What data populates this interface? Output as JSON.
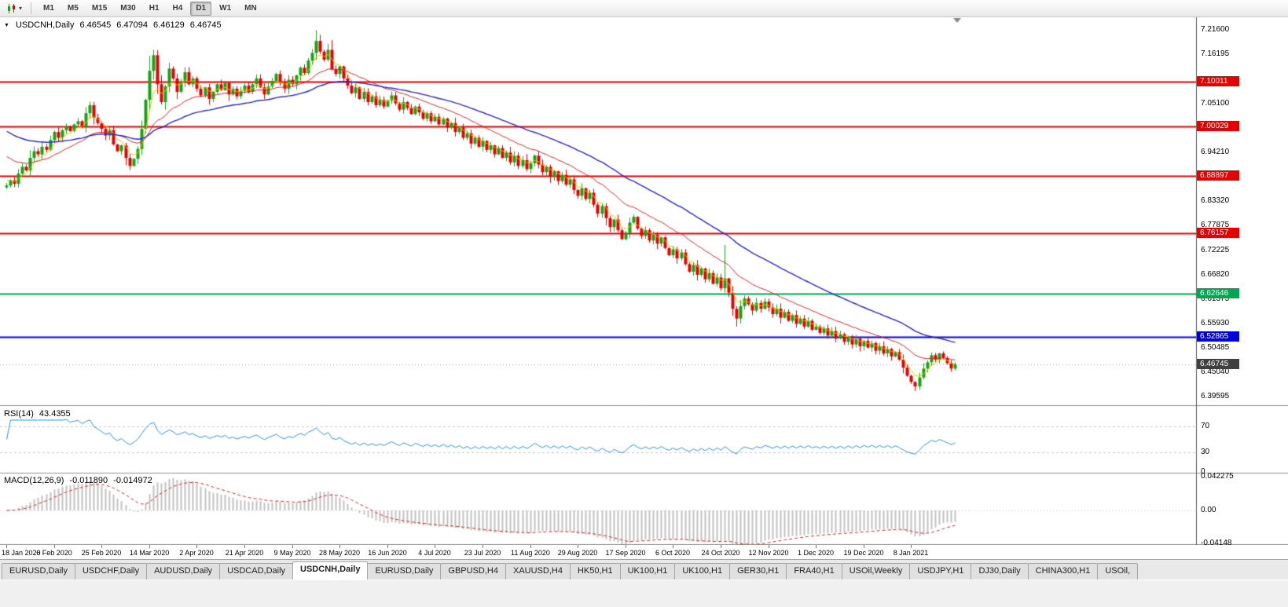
{
  "toolbar": {
    "timeframes": [
      "M1",
      "M5",
      "M15",
      "M30",
      "H1",
      "H4",
      "D1",
      "W1",
      "MN"
    ],
    "active_timeframe": "D1"
  },
  "panes": {
    "main": {
      "title": "USDCNH,Daily",
      "open": "6.46545",
      "high": "6.47094",
      "low": "6.46129",
      "close": "6.46745"
    },
    "rsi": {
      "label": "RSI(14)",
      "value": "43.4355"
    },
    "macd": {
      "label": "MACD(12,26,9)",
      "value": "-0.011890",
      "signal": "-0.014972"
    }
  },
  "chart_data": {
    "type": "candlestick",
    "symbol": "USDCNH",
    "timeframe": "Daily",
    "price_ticks": [
      "7.21600",
      "7.16195",
      "7.05100",
      "6.94210",
      "6.83320",
      "6.77875",
      "6.72225",
      "6.66820",
      "6.61375",
      "6.55930",
      "6.50485",
      "6.45040",
      "6.39595"
    ],
    "hlines": [
      {
        "price": 7.10011,
        "color": "red"
      },
      {
        "price": 7.00029,
        "color": "red"
      },
      {
        "price": 6.88897,
        "color": "red"
      },
      {
        "price": 6.76157,
        "color": "red"
      },
      {
        "price": 6.62646,
        "color": "green"
      },
      {
        "price": 6.52865,
        "color": "blue"
      }
    ],
    "current_price": 6.46745,
    "dates": [
      {
        "text": "18 Jan 2020",
        "i": 0
      },
      {
        "text": "6 Feb 2020",
        "i": 12
      },
      {
        "text": "25 Feb 2020",
        "i": 24
      },
      {
        "text": "14 Mar 2020",
        "i": 36
      },
      {
        "text": "2 Apr 2020",
        "i": 48
      },
      {
        "text": "21 Apr 2020",
        "i": 60
      },
      {
        "text": "9 May 2020",
        "i": 72
      },
      {
        "text": "28 May 2020",
        "i": 84
      },
      {
        "text": "16 Jun 2020",
        "i": 96
      },
      {
        "text": "4 Jul 2020",
        "i": 108
      },
      {
        "text": "23 Jul 2020",
        "i": 120
      },
      {
        "text": "11 Aug 2020",
        "i": 132
      },
      {
        "text": "29 Aug 2020",
        "i": 144
      },
      {
        "text": "17 Sep 2020",
        "i": 156
      },
      {
        "text": "6 Oct 2020",
        "i": 168
      },
      {
        "text": "24 Oct 2020",
        "i": 180
      },
      {
        "text": "12 Nov 2020",
        "i": 192
      },
      {
        "text": "1 Dec 2020",
        "i": 204
      },
      {
        "text": "19 Dec 2020",
        "i": 216
      },
      {
        "text": "8 Jan 2021",
        "i": 228
      }
    ],
    "closes": [
      6.868,
      6.88,
      6.872,
      6.895,
      6.91,
      6.902,
      6.93,
      6.945,
      6.938,
      6.955,
      6.948,
      6.97,
      6.988,
      6.975,
      6.992,
      7.0,
      6.99,
      7.005,
      7.012,
      7.0,
      7.03,
      7.048,
      7.02,
      7.008,
      6.995,
      6.98,
      6.992,
      6.96,
      6.945,
      6.958,
      6.93,
      6.912,
      6.928,
      6.95,
      6.995,
      7.06,
      7.125,
      7.16,
      7.095,
      7.055,
      7.09,
      7.13,
      7.108,
      7.078,
      7.1,
      7.122,
      7.095,
      7.108,
      7.085,
      7.07,
      7.088,
      7.062,
      7.078,
      7.095,
      7.082,
      7.098,
      7.072,
      7.085,
      7.068,
      7.08,
      7.092,
      7.078,
      7.095,
      7.108,
      7.088,
      7.072,
      7.09,
      7.102,
      7.118,
      7.098,
      7.085,
      7.105,
      7.095,
      7.115,
      7.132,
      7.12,
      7.148,
      7.165,
      7.192,
      7.168,
      7.15,
      7.172,
      7.128,
      7.118,
      7.135,
      7.108,
      7.092,
      7.075,
      7.088,
      7.062,
      7.078,
      7.055,
      7.068,
      7.048,
      7.06,
      7.045,
      7.058,
      7.07,
      7.052,
      7.038,
      7.055,
      7.042,
      7.028,
      7.045,
      7.032,
      7.018,
      7.03,
      7.012,
      7.022,
      7.005,
      7.018,
      6.998,
      7.008,
      6.988,
      6.998,
      6.975,
      6.985,
      6.962,
      6.975,
      6.955,
      6.968,
      6.948,
      6.958,
      6.938,
      6.952,
      6.93,
      6.942,
      6.92,
      6.935,
      6.912,
      6.925,
      6.905,
      6.918,
      6.935,
      6.915,
      6.898,
      6.91,
      6.888,
      6.9,
      6.878,
      6.892,
      6.87,
      6.882,
      6.858,
      6.845,
      6.862,
      6.838,
      6.852,
      6.825,
      6.805,
      6.822,
      6.795,
      6.775,
      6.792,
      6.768,
      6.748,
      6.762,
      6.785,
      6.798,
      6.772,
      6.755,
      6.768,
      6.745,
      6.758,
      6.738,
      6.752,
      6.728,
      6.712,
      6.725,
      6.705,
      6.718,
      6.692,
      6.675,
      6.69,
      6.668,
      6.682,
      6.658,
      6.672,
      6.648,
      6.662,
      6.638,
      6.66,
      6.628,
      6.592,
      6.57,
      6.598,
      6.615,
      6.602,
      6.588,
      6.605,
      6.592,
      6.608,
      6.595,
      6.58,
      6.592,
      6.572,
      6.585,
      6.565,
      6.578,
      6.558,
      6.57,
      6.552,
      6.565,
      6.545,
      6.552,
      6.538,
      6.548,
      6.532,
      6.542,
      6.525,
      6.535,
      6.518,
      6.53,
      6.512,
      6.525,
      6.508,
      6.52,
      6.505,
      6.515,
      6.498,
      6.508,
      6.492,
      6.502,
      6.485,
      6.495,
      6.478,
      6.46,
      6.442,
      6.428,
      6.418,
      6.438,
      6.458,
      6.472,
      6.488,
      6.478,
      6.492,
      6.482,
      6.47,
      6.458,
      6.4675
    ],
    "wick_overrides": {
      "21": {
        "high": 7.056
      },
      "37": {
        "high": 7.172
      },
      "78": {
        "high": 7.216
      },
      "181": {
        "high": 6.735
      },
      "184": {
        "low": 6.552
      },
      "229": {
        "low": 6.408
      }
    },
    "moving_averages": [
      {
        "period": 5,
        "color": "#e8c400",
        "seed": 6.885
      },
      {
        "period": 20,
        "color": "#dd2222",
        "seed": 6.94
      },
      {
        "period": 45,
        "color": "#2828cc",
        "seed": 6.995
      }
    ],
    "rsi": {
      "period": 14,
      "levels": [
        70,
        30
      ],
      "axis": [
        {
          "text": "70",
          "value": 70
        },
        {
          "text": "30",
          "value": 30
        },
        {
          "text": "0",
          "value": 0
        }
      ]
    },
    "macd": {
      "fast": 12,
      "slow": 26,
      "signal": 9,
      "axis": [
        {
          "text": "0.042275",
          "value": 0.042275
        },
        {
          "text": "0.00",
          "value": 0
        },
        {
          "text": "-0.04148",
          "value": -0.04148
        }
      ]
    }
  },
  "tabs": [
    "EURUSD,Daily",
    "USDCHF,Daily",
    "AUDUSD,Daily",
    "USDCAD,Daily",
    "USDCNH,Daily",
    "EURUSD,Daily",
    "GBPUSD,H4",
    "XAUUSD,H4",
    "HK50,H1",
    "UK100,H1",
    "UK100,H1",
    "GER30,H1",
    "FRA40,H1",
    "USOil,Weekly",
    "USDJPY,H1",
    "DJ30,Daily",
    "CHINA300,H1",
    "USOil,"
  ],
  "active_tab_index": 4,
  "colors": {
    "up": "#17a317",
    "down": "#e60000",
    "red": "#e60000",
    "green": "#00a650",
    "blue": "#0000dd",
    "current": "#3f3f3f",
    "rsi_line": "#2a8fdd",
    "macd_hist": "#c2c2c2",
    "macd_signal": "#dd2222"
  }
}
